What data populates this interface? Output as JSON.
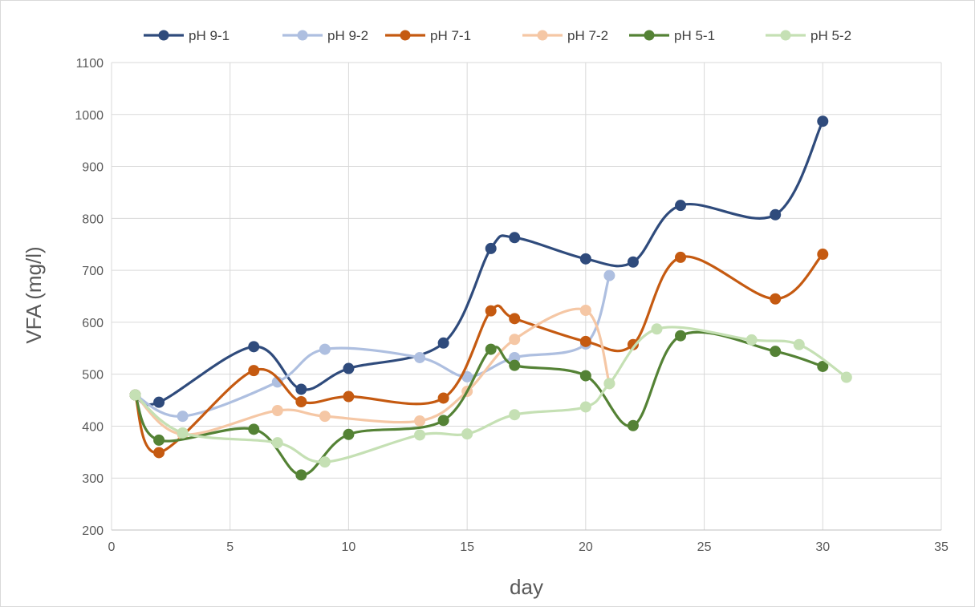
{
  "chart_data": {
    "type": "line",
    "title": "",
    "xlabel": "day",
    "ylabel": "VFA (mg/l)",
    "xlim": [
      0,
      35
    ],
    "ylim": [
      200,
      1100
    ],
    "xticks": [
      0,
      5,
      10,
      15,
      20,
      25,
      30,
      35
    ],
    "yticks": [
      200,
      300,
      400,
      500,
      600,
      700,
      800,
      900,
      1000,
      1100
    ],
    "grid": true,
    "smooth": true,
    "legend_position": "top",
    "series": [
      {
        "name": "pH 9-1",
        "color": "#2f4b7c",
        "x": [
          1,
          2,
          6,
          8,
          10,
          14,
          16,
          17,
          20,
          22,
          24,
          28,
          30
        ],
        "y": [
          460,
          446,
          553,
          471,
          511,
          560,
          742,
          763,
          722,
          716,
          825,
          807,
          987
        ]
      },
      {
        "name": "pH 9-2",
        "color": "#aebfe0",
        "x": [
          1,
          3,
          7,
          9,
          13,
          15,
          17,
          20,
          21
        ],
        "y": [
          460,
          419,
          485,
          548,
          532,
          495,
          532,
          558,
          690
        ]
      },
      {
        "name": "pH 7-1",
        "color": "#c55a11",
        "x": [
          1,
          2,
          6,
          8,
          10,
          14,
          16,
          17,
          20,
          22,
          24,
          28,
          30
        ],
        "y": [
          460,
          349,
          507,
          447,
          457,
          454,
          622,
          607,
          563,
          557,
          725,
          645,
          731
        ]
      },
      {
        "name": "pH 7-2",
        "color": "#f5c7a5",
        "x": [
          1,
          3,
          7,
          9,
          13,
          15,
          17,
          20,
          21
        ],
        "y": [
          460,
          384,
          430,
          419,
          410,
          467,
          567,
          623,
          482
        ]
      },
      {
        "name": "pH 5-1",
        "color": "#548235",
        "x": [
          1,
          2,
          6,
          8,
          10,
          14,
          16,
          17,
          20,
          22,
          24,
          28,
          30
        ],
        "y": [
          460,
          373,
          394,
          306,
          384,
          411,
          548,
          517,
          497,
          401,
          574,
          544,
          515
        ]
      },
      {
        "name": "pH 5-2",
        "color": "#c5e0b4",
        "x": [
          1,
          3,
          7,
          9,
          13,
          15,
          17,
          20,
          21,
          23,
          27,
          29,
          31
        ],
        "y": [
          460,
          387,
          368,
          331,
          383,
          385,
          422,
          437,
          482,
          587,
          566,
          557,
          494
        ]
      }
    ]
  }
}
